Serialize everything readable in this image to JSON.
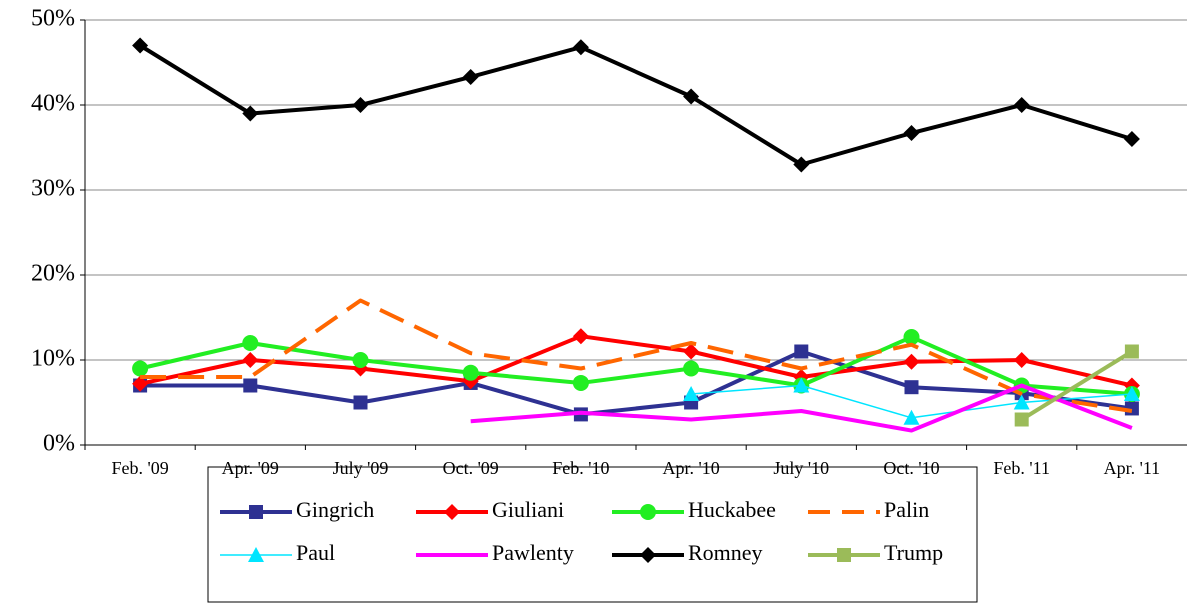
{
  "chart_data": {
    "type": "line",
    "categories": [
      "Feb. '09",
      "Apr. '09",
      "July '09",
      "Oct. '09",
      "Feb. '10",
      "Apr. '10",
      "July '10",
      "Oct. '10",
      "Feb. '11",
      "Apr. '11"
    ],
    "ylim": [
      0,
      50
    ],
    "yticks": [
      {
        "value": 0,
        "label": "0%"
      },
      {
        "value": 10,
        "label": "10%"
      },
      {
        "value": 20,
        "label": "20%"
      },
      {
        "value": 30,
        "label": "30%"
      },
      {
        "value": 40,
        "label": "40%"
      },
      {
        "value": 50,
        "label": "50%"
      }
    ],
    "grid": true,
    "legend": "bottom",
    "series": [
      {
        "name": "Gingrich",
        "color": "#2e3192",
        "marker": "square",
        "values": [
          7,
          7,
          5,
          7.3,
          3.6,
          5,
          11,
          6.8,
          6.1,
          4.3
        ]
      },
      {
        "name": "Giuliani",
        "color": "#ff0000",
        "marker": "diamond",
        "values": [
          7.2,
          10,
          9,
          7.5,
          12.8,
          11,
          8,
          9.8,
          10,
          7
        ]
      },
      {
        "name": "Huckabee",
        "color": "#22ee22",
        "marker": "circle",
        "values": [
          9,
          12,
          10,
          8.5,
          7.3,
          9,
          7,
          12.7,
          7,
          6
        ]
      },
      {
        "name": "Palin",
        "color": "#ff6600",
        "marker": "none",
        "dash": true,
        "values": [
          8,
          8,
          17,
          10.8,
          9,
          12,
          9,
          11.8,
          6,
          4
        ]
      },
      {
        "name": "Paul",
        "color": "#00e5ff",
        "marker": "triangle",
        "thin": true,
        "values": [
          null,
          null,
          null,
          null,
          null,
          6,
          7,
          3.2,
          5,
          6
        ]
      },
      {
        "name": "Pawlenty",
        "color": "#ff00ff",
        "marker": "none",
        "values": [
          null,
          null,
          null,
          2.8,
          3.8,
          3,
          4,
          1.7,
          7,
          2
        ]
      },
      {
        "name": "Romney",
        "color": "#000000",
        "marker": "diamond",
        "values": [
          47,
          39,
          40,
          43.3,
          46.8,
          41,
          33,
          36.7,
          40,
          36
        ]
      },
      {
        "name": "Trump",
        "color": "#9bbb59",
        "marker": "square",
        "values": [
          null,
          null,
          null,
          null,
          null,
          null,
          null,
          null,
          3,
          11
        ]
      }
    ]
  }
}
